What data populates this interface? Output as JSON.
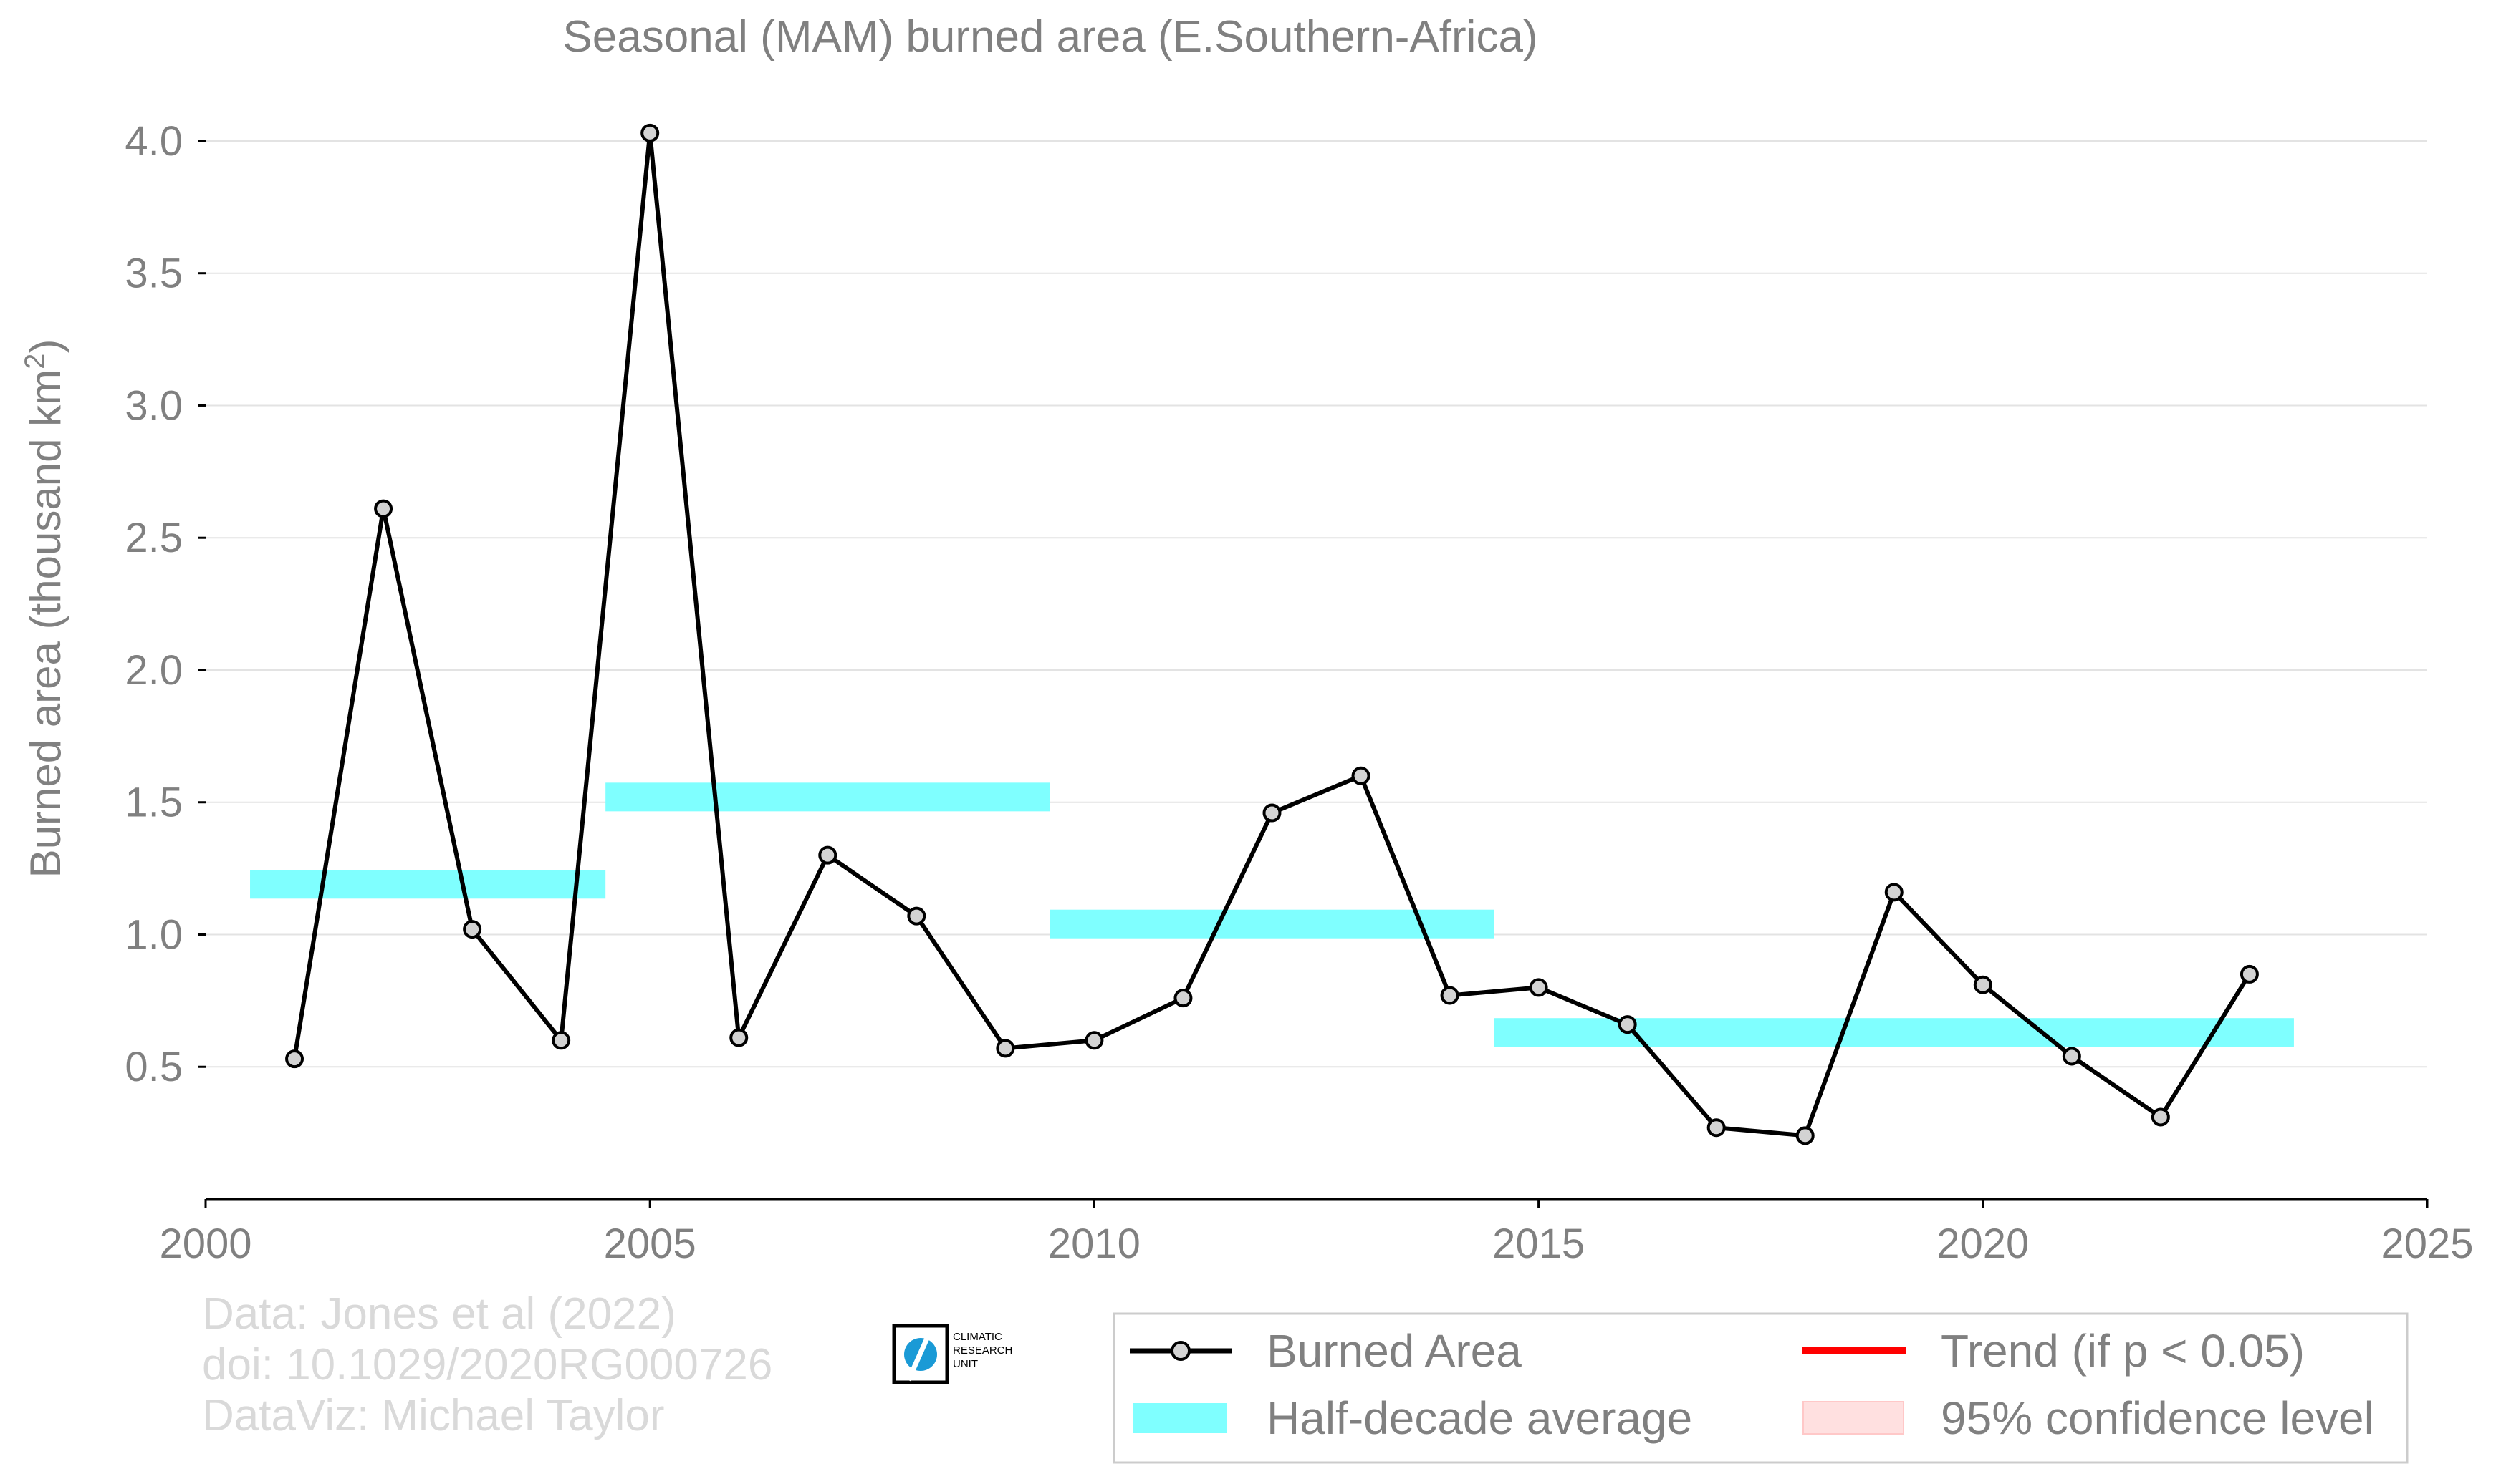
{
  "chart_data": {
    "type": "line",
    "title": "Seasonal (MAM) burned area (E.Southern-Africa)",
    "ylabel_main": "Burned area (thousand km",
    "ylabel_sup": "2",
    "ylabel_close": ")",
    "xlabel": "",
    "xlim": [
      2000,
      2025
    ],
    "ylim": [
      0.0,
      4.1
    ],
    "x_ticks": [
      2000,
      2005,
      2010,
      2015,
      2020,
      2025
    ],
    "y_ticks": [
      0.5,
      1.0,
      1.5,
      2.0,
      2.5,
      3.0,
      3.5,
      4.0
    ],
    "y_tick_labels": [
      "0.5",
      "1.0",
      "1.5",
      "2.0",
      "2.5",
      "3.0",
      "3.5",
      "4.0"
    ],
    "grid": "horizontal",
    "series": [
      {
        "name": "Burned Area",
        "color": "#000000",
        "marker_fill": "#d3d3d3",
        "x": [
          2001,
          2002,
          2003,
          2004,
          2005,
          2006,
          2007,
          2008,
          2009,
          2010,
          2011,
          2012,
          2013,
          2014,
          2015,
          2016,
          2017,
          2018,
          2019,
          2020,
          2021,
          2022,
          2023
        ],
        "values": [
          0.53,
          2.61,
          1.02,
          0.6,
          4.03,
          0.61,
          1.3,
          1.07,
          0.57,
          0.6,
          0.76,
          1.46,
          1.6,
          0.77,
          0.8,
          0.66,
          0.27,
          0.24,
          1.16,
          0.81,
          0.54,
          0.31,
          0.85
        ]
      }
    ],
    "half_decade_average": {
      "name": "Half-decade average",
      "color": "#7fffff",
      "segments": [
        {
          "x_start": 2000.5,
          "x_end": 2004.5,
          "value": 1.19
        },
        {
          "x_start": 2004.5,
          "x_end": 2009.5,
          "value": 1.52
        },
        {
          "x_start": 2009.5,
          "x_end": 2014.5,
          "value": 1.04
        },
        {
          "x_start": 2014.5,
          "x_end": 2023.5,
          "value": 0.63
        }
      ]
    },
    "legend": {
      "position": "bottom-right",
      "entries": [
        {
          "label": "Burned Area",
          "kind": "line-marker",
          "color": "#000000"
        },
        {
          "label": "Trend (if p < 0.05)",
          "kind": "line",
          "color": "#ff0000"
        },
        {
          "label": "Half-decade average",
          "kind": "band",
          "color": "#7fffff"
        },
        {
          "label": "95% confidence level",
          "kind": "band",
          "color": "#ffe0e0"
        }
      ]
    }
  },
  "credits": {
    "line1": "Data: Jones et al (2022)",
    "line2": "doi: 10.1029/2020RG000726",
    "line3": "DataViz: Michael Taylor"
  },
  "logo": {
    "line1": "CLIMATIC",
    "line2": "RESEARCH",
    "line3": "UNIT",
    "color": "#1a9ad6"
  }
}
